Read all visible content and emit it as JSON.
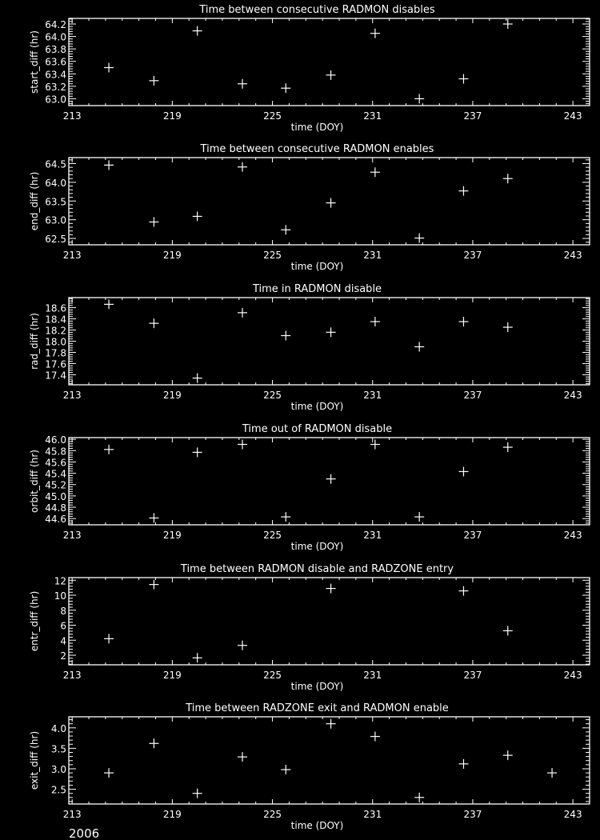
{
  "footer": {
    "year": "2006"
  },
  "colors": {
    "background": "#000000",
    "foreground": "#ffffff"
  },
  "chart_data": [
    {
      "type": "scatter",
      "title": "Time between consecutive RADMON disables",
      "xlabel": "time (DOY)",
      "ylabel": "start_diff (hr)",
      "xlim": [
        212.8,
        244
      ],
      "xticks": [
        213,
        219,
        225,
        231,
        237,
        243
      ],
      "ylim": [
        62.89,
        64.29
      ],
      "yticks": [
        "63.0",
        "63.2",
        "63.4",
        "63.6",
        "63.8",
        "64.0",
        "64.2"
      ],
      "marker": "plus",
      "x": [
        215.2,
        217.9,
        220.5,
        223.2,
        225.8,
        228.5,
        231.15,
        233.8,
        236.45,
        239.1
      ],
      "y": [
        63.5,
        63.29,
        64.09,
        63.24,
        63.17,
        63.38,
        64.05,
        63.0,
        63.32,
        64.2
      ]
    },
    {
      "type": "scatter",
      "title": "Time between consecutive RADMON enables",
      "xlabel": "time (DOY)",
      "ylabel": "end_diff (hr)",
      "xlim": [
        212.8,
        244
      ],
      "xticks": [
        213,
        219,
        225,
        231,
        237,
        243
      ],
      "ylim": [
        62.33,
        64.66
      ],
      "yticks": [
        "62.5",
        "63.0",
        "63.5",
        "64.0",
        "64.5"
      ],
      "marker": "plus",
      "x": [
        215.2,
        217.9,
        220.5,
        223.2,
        225.8,
        228.5,
        231.15,
        233.8,
        236.45,
        239.1
      ],
      "y": [
        64.46,
        62.94,
        63.09,
        64.41,
        62.73,
        63.45,
        64.27,
        62.51,
        63.77,
        64.1
      ]
    },
    {
      "type": "scatter",
      "title": "Time in RADMON disable",
      "xlabel": "time (DOY)",
      "ylabel": "rad_diff (hr)",
      "xlim": [
        212.8,
        244
      ],
      "xticks": [
        213,
        219,
        225,
        231,
        237,
        243
      ],
      "ylim": [
        17.22,
        18.78
      ],
      "yticks": [
        "17.4",
        "17.6",
        "17.8",
        "18.0",
        "18.2",
        "18.4",
        "18.6"
      ],
      "marker": "plus",
      "x": [
        215.2,
        217.9,
        220.5,
        223.2,
        225.8,
        228.5,
        231.15,
        233.8,
        236.45,
        239.1
      ],
      "y": [
        18.66,
        18.32,
        17.34,
        18.51,
        18.1,
        18.16,
        18.35,
        17.9,
        18.35,
        18.25
      ]
    },
    {
      "type": "scatter",
      "title": "Time out of RADMON disable",
      "xlabel": "time (DOY)",
      "ylabel": "orbit_diff (hr)",
      "xlim": [
        212.8,
        244
      ],
      "xticks": [
        213,
        219,
        225,
        231,
        237,
        243
      ],
      "ylim": [
        44.49,
        46.03
      ],
      "yticks": [
        "44.6",
        "44.8",
        "45.0",
        "45.2",
        "45.4",
        "45.6",
        "45.8",
        "46.0"
      ],
      "marker": "plus",
      "x": [
        215.2,
        217.9,
        220.5,
        223.2,
        225.8,
        228.5,
        231.15,
        233.8,
        236.45,
        239.1
      ],
      "y": [
        45.82,
        44.61,
        45.77,
        45.91,
        44.63,
        45.3,
        45.91,
        44.63,
        45.43,
        45.86
      ]
    },
    {
      "type": "scatter",
      "title": "Time between RADMON disable and RADZONE entry",
      "xlabel": "time (DOY)",
      "ylabel": "entr_diff (hr)",
      "xlim": [
        212.8,
        244
      ],
      "xticks": [
        213,
        219,
        225,
        231,
        237,
        243
      ],
      "ylim": [
        0.72,
        12.35
      ],
      "yticks": [
        "2",
        "4",
        "6",
        "8",
        "10",
        "12"
      ],
      "marker": "plus",
      "x": [
        215.2,
        217.9,
        220.5,
        223.2,
        228.5,
        236.45,
        239.1
      ],
      "y": [
        4.2,
        11.43,
        1.65,
        3.31,
        10.9,
        10.58,
        5.26
      ]
    },
    {
      "type": "scatter",
      "title": "Time between RADZONE exit and RADMON enable",
      "xlabel": "time (DOY)",
      "ylabel": "exit_diff (hr)",
      "xlim": [
        212.8,
        244
      ],
      "xticks": [
        213,
        219,
        225,
        231,
        237,
        243
      ],
      "ylim": [
        2.14,
        4.27
      ],
      "yticks": [
        "2.5",
        "3.0",
        "3.5",
        "4.0"
      ],
      "marker": "plus",
      "x": [
        215.2,
        217.9,
        220.5,
        223.2,
        225.8,
        228.5,
        231.15,
        233.8,
        236.45,
        239.1,
        241.75
      ],
      "y": [
        2.9,
        3.62,
        2.4,
        3.29,
        2.98,
        4.1,
        3.79,
        2.3,
        3.12,
        3.33,
        2.9
      ]
    }
  ]
}
